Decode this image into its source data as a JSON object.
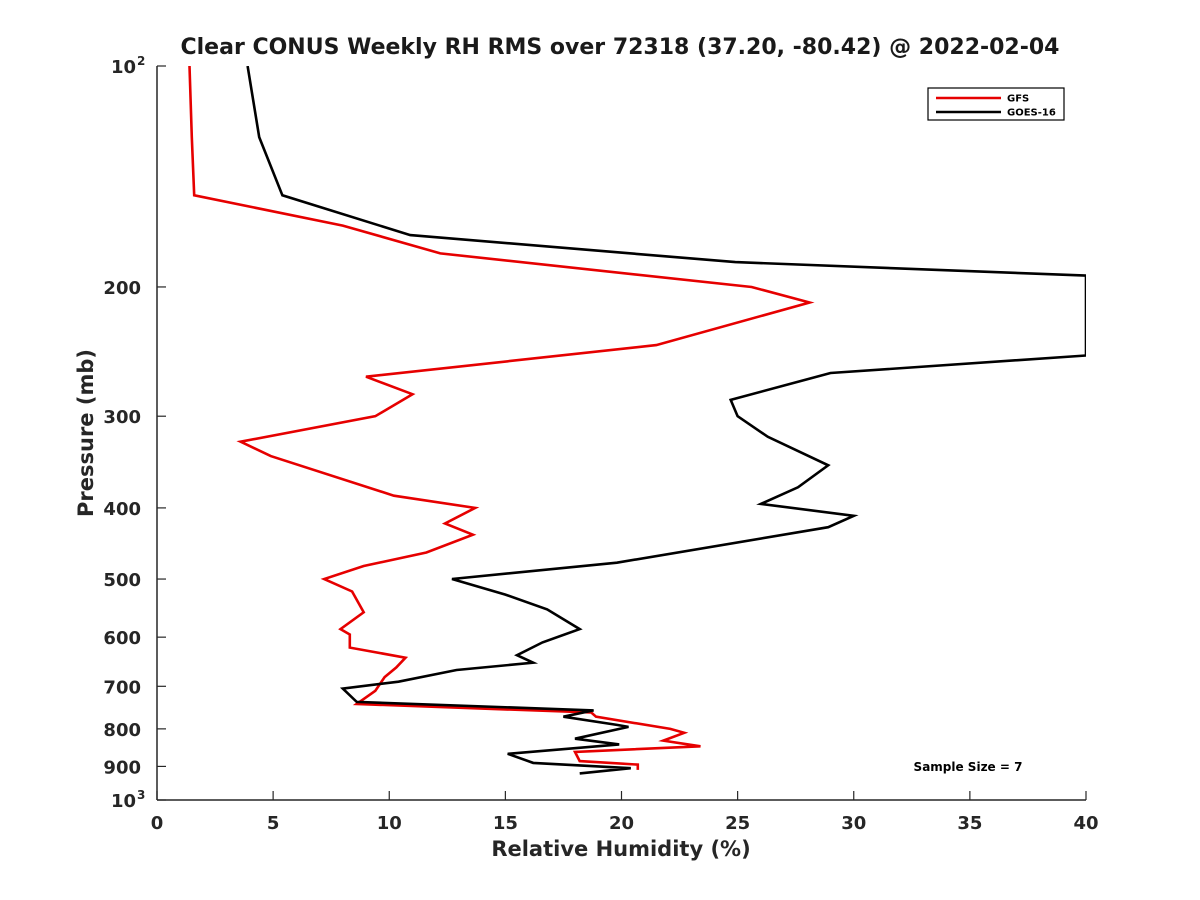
{
  "chart_data": {
    "type": "line",
    "title": "Clear CONUS Weekly RH RMS over 72318 (37.20, -80.42) @ 2022-02-04",
    "xlabel": "Relative Humidity (%)",
    "ylabel": "Pressure (mb)",
    "xlim": [
      0,
      40
    ],
    "ylim": [
      100,
      1000
    ],
    "y_scale": "log",
    "y_reversed": true,
    "xticks": [
      0,
      5,
      10,
      15,
      20,
      25,
      30,
      35,
      40
    ],
    "yticks": [
      {
        "value": 100,
        "label": "10",
        "sup": "2"
      },
      {
        "value": 200,
        "label": "200"
      },
      {
        "value": 300,
        "label": "300"
      },
      {
        "value": 400,
        "label": "400"
      },
      {
        "value": 500,
        "label": "500"
      },
      {
        "value": 600,
        "label": "600"
      },
      {
        "value": 700,
        "label": "700"
      },
      {
        "value": 800,
        "label": "800"
      },
      {
        "value": 900,
        "label": "900"
      },
      {
        "value": 1000,
        "label": "10",
        "sup": "3"
      }
    ],
    "grid": false,
    "legend_position": "top-right",
    "annotation": "Sample Size = 7",
    "series": [
      {
        "name": "GFS",
        "color": "#e60000",
        "points": [
          [
            1.4,
            100
          ],
          [
            1.5,
            125
          ],
          [
            1.6,
            150
          ],
          [
            8.0,
            165
          ],
          [
            12.2,
            180
          ],
          [
            25.6,
            200
          ],
          [
            28.1,
            210
          ],
          [
            21.5,
            240
          ],
          [
            9.0,
            265
          ],
          [
            11.0,
            280
          ],
          [
            9.4,
            300
          ],
          [
            3.6,
            325
          ],
          [
            4.9,
            340
          ],
          [
            10.2,
            385
          ],
          [
            13.7,
            400
          ],
          [
            12.4,
            420
          ],
          [
            13.6,
            435
          ],
          [
            11.6,
            460
          ],
          [
            8.9,
            480
          ],
          [
            7.2,
            500
          ],
          [
            8.4,
            520
          ],
          [
            8.9,
            555
          ],
          [
            7.9,
            585
          ],
          [
            8.3,
            595
          ],
          [
            8.3,
            620
          ],
          [
            10.7,
            640
          ],
          [
            10.3,
            660
          ],
          [
            9.8,
            680
          ],
          [
            9.4,
            710
          ],
          [
            8.6,
            740
          ],
          [
            18.7,
            760
          ],
          [
            18.9,
            770
          ],
          [
            22.1,
            800
          ],
          [
            22.7,
            810
          ],
          [
            21.8,
            830
          ],
          [
            23.4,
            845
          ],
          [
            18.0,
            860
          ],
          [
            18.2,
            885
          ],
          [
            20.7,
            895
          ],
          [
            20.7,
            910
          ]
        ]
      },
      {
        "name": "GOES-16",
        "color": "#000000",
        "points": [
          [
            3.9,
            100
          ],
          [
            4.4,
            125
          ],
          [
            5.4,
            150
          ],
          [
            10.9,
            170
          ],
          [
            24.9,
            185
          ],
          [
            40.0,
            193
          ],
          [
            40.0,
            248
          ],
          [
            29.0,
            262
          ],
          [
            24.7,
            285
          ],
          [
            25.0,
            300
          ],
          [
            26.3,
            320
          ],
          [
            28.9,
            350
          ],
          [
            27.6,
            375
          ],
          [
            26.0,
            395
          ],
          [
            30.0,
            410
          ],
          [
            28.9,
            425
          ],
          [
            19.8,
            475
          ],
          [
            12.7,
            500
          ],
          [
            15.0,
            525
          ],
          [
            16.8,
            550
          ],
          [
            18.2,
            585
          ],
          [
            16.6,
            610
          ],
          [
            15.5,
            635
          ],
          [
            16.2,
            650
          ],
          [
            12.9,
            665
          ],
          [
            10.4,
            690
          ],
          [
            8.0,
            705
          ],
          [
            8.6,
            735
          ],
          [
            18.8,
            755
          ],
          [
            17.5,
            770
          ],
          [
            19.8,
            790
          ],
          [
            20.3,
            795
          ],
          [
            18.0,
            825
          ],
          [
            19.9,
            840
          ],
          [
            15.1,
            865
          ],
          [
            16.2,
            890
          ],
          [
            20.4,
            905
          ],
          [
            18.2,
            920
          ]
        ]
      }
    ]
  }
}
